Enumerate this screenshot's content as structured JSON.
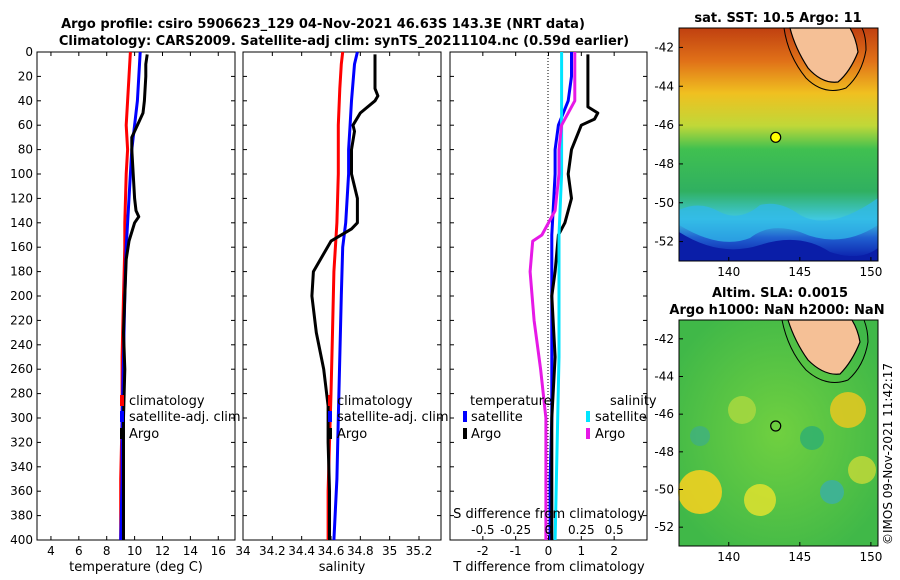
{
  "figure": {
    "title_line1": "Argo profile: csiro 5906623_129 04-Nov-2021 46.63S 143.3E (NRT data)",
    "title_line2": "Climatology: CARS2009. Satellite-adj clim: synTS_20211104.nc (0.59d earlier)",
    "credit": "©IMOS 09-Nov-2021 11:42:17"
  },
  "colors": {
    "climatology": "#ff0000",
    "satellite": "#0000ff",
    "argo": "#000000",
    "salinity_satellite": "#00e5ff",
    "salinity_argo": "#e619e6",
    "land": "#f5c096"
  },
  "chart_data": [
    {
      "type": "line",
      "name": "temperature-profile",
      "xlabel": "temperature (deg C)",
      "ylabel": "",
      "xlim": [
        3,
        17.2
      ],
      "ylim": [
        0,
        400
      ],
      "y_reversed": true,
      "xticks": [
        "4",
        "6",
        "8",
        "10",
        "12",
        "14",
        "16"
      ],
      "yticks": [
        "0",
        "20",
        "40",
        "60",
        "80",
        "100",
        "120",
        "140",
        "160",
        "180",
        "200",
        "220",
        "240",
        "260",
        "280",
        "300",
        "320",
        "340",
        "360",
        "380",
        "400"
      ],
      "legend": [
        "climatology",
        "satellite-adj. clim",
        "Argo"
      ],
      "series": [
        {
          "name": "climatology",
          "depth": [
            0,
            20,
            40,
            60,
            80,
            100,
            140,
            160,
            200,
            250,
            300,
            350,
            400
          ],
          "values": [
            9.7,
            9.6,
            9.5,
            9.4,
            9.5,
            9.4,
            9.3,
            9.3,
            9.2,
            9.1,
            9.1,
            9.0,
            9.0
          ]
        },
        {
          "name": "satellite-adj. clim",
          "depth": [
            0,
            20,
            40,
            60,
            80,
            100,
            140,
            160,
            200,
            250,
            300,
            350,
            400
          ],
          "values": [
            10.4,
            10.3,
            10.2,
            10.0,
            9.8,
            9.7,
            9.5,
            9.4,
            9.3,
            9.2,
            9.1,
            9.1,
            9.0
          ]
        },
        {
          "name": "Argo",
          "depth": [
            2,
            10,
            20,
            40,
            50,
            60,
            70,
            80,
            100,
            120,
            130,
            135,
            140,
            155,
            170,
            200,
            230,
            260,
            300,
            350,
            400
          ],
          "values": [
            10.9,
            10.8,
            10.8,
            10.7,
            10.6,
            10.2,
            9.8,
            9.8,
            9.9,
            10.0,
            10.1,
            10.3,
            10.0,
            9.6,
            9.4,
            9.3,
            9.2,
            9.3,
            9.2,
            9.2,
            9.2
          ]
        }
      ]
    },
    {
      "type": "line",
      "name": "salinity-profile",
      "xlabel": "salinity",
      "xlim": [
        34.0,
        35.35
      ],
      "ylim": [
        0,
        400
      ],
      "y_reversed": true,
      "xticks": [
        "34",
        "34.2",
        "34.4",
        "34.6",
        "34.8",
        "35",
        "35.2"
      ],
      "legend": [
        "climatology",
        "satellite-adj. clim",
        "Argo"
      ],
      "series": [
        {
          "name": "climatology",
          "depth": [
            0,
            10,
            30,
            60,
            100,
            140,
            180,
            230,
            280,
            320,
            360,
            400
          ],
          "values": [
            34.68,
            34.67,
            34.66,
            34.65,
            34.65,
            34.64,
            34.62,
            34.61,
            34.6,
            34.59,
            34.58,
            34.58
          ]
        },
        {
          "name": "satellite-adj. clim",
          "depth": [
            0,
            10,
            40,
            60,
            80,
            100,
            140,
            160,
            200,
            250,
            300,
            350,
            400
          ],
          "values": [
            34.78,
            34.76,
            34.74,
            34.73,
            34.72,
            34.72,
            34.7,
            34.68,
            34.67,
            34.66,
            34.65,
            34.64,
            34.62
          ]
        },
        {
          "name": "Argo",
          "depth": [
            2,
            10,
            20,
            30,
            36,
            40,
            50,
            60,
            65,
            80,
            100,
            120,
            140,
            145,
            155,
            180,
            200,
            230,
            260,
            290,
            320,
            360,
            400
          ],
          "values": [
            34.9,
            34.9,
            34.9,
            34.9,
            34.92,
            34.9,
            34.8,
            34.75,
            34.76,
            34.74,
            34.74,
            34.78,
            34.78,
            34.74,
            34.6,
            34.48,
            34.47,
            34.5,
            34.55,
            34.58,
            34.58,
            34.59,
            34.59
          ]
        }
      ]
    },
    {
      "type": "line",
      "name": "difference-profile",
      "xlabel": "T difference from climatology",
      "top_xlabel": "S difference from climatology",
      "xlim": [
        -3,
        3
      ],
      "ylim": [
        0,
        400
      ],
      "y_reversed": true,
      "xticks": [
        "-2",
        "-1",
        "0",
        "1",
        "2"
      ],
      "top_xticks": [
        "-0.5",
        "-0.25",
        "0",
        "0.25",
        "0.5"
      ],
      "legend_left_title": "temperature",
      "legend_left": [
        "satellite",
        "Argo"
      ],
      "legend_right_title": "salinity",
      "legend_right": [
        "satellite",
        "Argo"
      ],
      "series": [
        {
          "name": "temperature satellite",
          "depth": [
            0,
            20,
            40,
            60,
            80,
            100,
            150,
            200,
            250,
            300,
            350,
            400
          ],
          "values": [
            0.7,
            0.7,
            0.6,
            0.3,
            0.2,
            0.2,
            0.1,
            0.1,
            0.1,
            0.1,
            0.05,
            0.05
          ]
        },
        {
          "name": "temperature Argo",
          "depth": [
            2,
            20,
            40,
            45,
            50,
            55,
            60,
            80,
            100,
            120,
            140,
            150,
            180,
            200,
            250,
            300,
            350,
            400
          ],
          "values": [
            1.2,
            1.2,
            1.2,
            1.2,
            1.5,
            1.4,
            1.0,
            0.7,
            0.6,
            0.7,
            0.5,
            0.3,
            0.2,
            0.1,
            0.2,
            0.1,
            0.1,
            0.1
          ]
        },
        {
          "name": "salinity satellite",
          "depth": [
            0,
            50,
            100,
            150,
            200,
            250,
            300,
            350,
            400
          ],
          "values": [
            0.1,
            0.1,
            0.1,
            0.08,
            0.08,
            0.08,
            0.07,
            0.06,
            0.05
          ]
        },
        {
          "name": "salinity Argo",
          "depth": [
            0,
            40,
            60,
            80,
            100,
            130,
            150,
            155,
            180,
            220,
            260,
            300,
            350,
            400
          ],
          "values": [
            0.2,
            0.2,
            0.1,
            0.08,
            0.08,
            0.05,
            -0.05,
            -0.12,
            -0.14,
            -0.11,
            -0.06,
            -0.02,
            -0.02,
            -0.02
          ]
        }
      ]
    }
  ],
  "maps": [
    {
      "name": "sst-map",
      "title": "sat. SST: 10.5 Argo: 11",
      "xticks": [
        "140",
        "145",
        "150"
      ],
      "yticks": [
        "-42",
        "-44",
        "-46",
        "-48",
        "-50",
        "-52"
      ],
      "lon_range": [
        136.5,
        150.5
      ],
      "lat_range": [
        -53,
        -41
      ],
      "argo_position": {
        "lon": 143.3,
        "lat": -46.63
      }
    },
    {
      "name": "sla-map",
      "title_line1": "Altim. SLA: 0.0015",
      "title_line2": "Argo h1000: NaN h2000: NaN",
      "xticks": [
        "140",
        "145",
        "150"
      ],
      "yticks": [
        "-42",
        "-44",
        "-46",
        "-48",
        "-50",
        "-52"
      ],
      "lon_range": [
        136.5,
        150.5
      ],
      "lat_range": [
        -53,
        -41
      ],
      "argo_position": {
        "lon": 143.3,
        "lat": -46.63
      }
    }
  ]
}
